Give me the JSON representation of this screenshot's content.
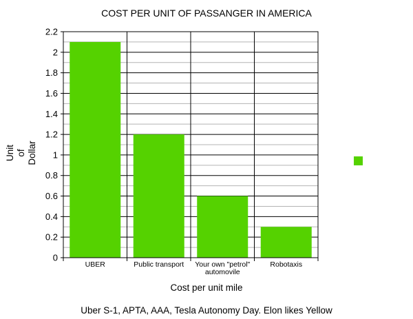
{
  "chart_data": {
    "type": "bar",
    "title": "COST PER UNIT OF PASSANGER IN AMERICA",
    "xlabel": "Cost per unit mile",
    "ylabel_lines": [
      "Unit",
      "of",
      "Dollar"
    ],
    "categories": [
      [
        "UBER"
      ],
      [
        "Public transport"
      ],
      [
        "Your own \"petrol\"",
        "automovile"
      ],
      [
        "Robotaxis"
      ]
    ],
    "values": [
      2.1,
      1.2,
      0.6,
      0.3
    ],
    "ylim": [
      0,
      2.2
    ],
    "yticks": [
      "0",
      "0.2",
      "0.4",
      "0.6",
      "0.8",
      "1",
      "1.2",
      "1.4",
      "1.6",
      "1.8",
      "2",
      "2.2"
    ],
    "grid": true,
    "legend": {
      "placement": "right",
      "label": ""
    },
    "bar_color": "#55d200",
    "source": "Uber S-1, APTA, AAA, Tesla Autonomy Day. Elon likes Yellow"
  }
}
